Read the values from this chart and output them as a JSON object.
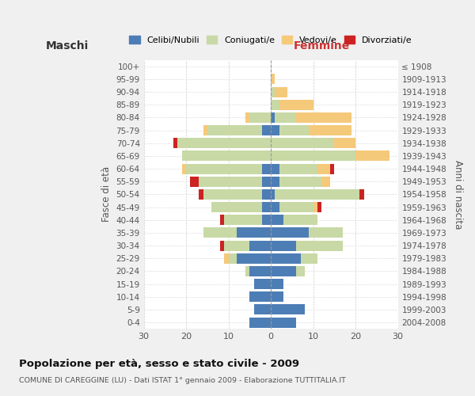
{
  "age_groups": [
    "0-4",
    "5-9",
    "10-14",
    "15-19",
    "20-24",
    "25-29",
    "30-34",
    "35-39",
    "40-44",
    "45-49",
    "50-54",
    "55-59",
    "60-64",
    "65-69",
    "70-74",
    "75-79",
    "80-84",
    "85-89",
    "90-94",
    "95-99",
    "100+"
  ],
  "birth_years": [
    "2004-2008",
    "1999-2003",
    "1994-1998",
    "1989-1993",
    "1984-1988",
    "1979-1983",
    "1974-1978",
    "1969-1973",
    "1964-1968",
    "1959-1963",
    "1954-1958",
    "1949-1953",
    "1944-1948",
    "1939-1943",
    "1934-1938",
    "1929-1933",
    "1924-1928",
    "1919-1923",
    "1914-1918",
    "1909-1913",
    "≤ 1908"
  ],
  "males": {
    "celibi": [
      5,
      4,
      5,
      4,
      5,
      8,
      5,
      8,
      2,
      2,
      2,
      2,
      2,
      0,
      0,
      2,
      0,
      0,
      0,
      0,
      0
    ],
    "coniugati": [
      0,
      0,
      0,
      0,
      1,
      2,
      6,
      8,
      9,
      12,
      14,
      15,
      18,
      21,
      22,
      13,
      5,
      0,
      0,
      0,
      0
    ],
    "vedovi": [
      0,
      0,
      0,
      0,
      0,
      1,
      0,
      0,
      0,
      0,
      0,
      0,
      1,
      0,
      0,
      1,
      1,
      0,
      0,
      0,
      0
    ],
    "divorziati": [
      0,
      0,
      0,
      0,
      0,
      0,
      1,
      0,
      1,
      0,
      1,
      2,
      0,
      0,
      1,
      0,
      0,
      0,
      0,
      0,
      0
    ]
  },
  "females": {
    "nubili": [
      6,
      8,
      3,
      3,
      6,
      7,
      6,
      9,
      3,
      2,
      1,
      2,
      2,
      0,
      0,
      2,
      1,
      0,
      0,
      0,
      0
    ],
    "coniugate": [
      0,
      0,
      0,
      0,
      2,
      4,
      11,
      8,
      8,
      8,
      20,
      10,
      9,
      20,
      15,
      7,
      5,
      2,
      1,
      0,
      0
    ],
    "vedove": [
      0,
      0,
      0,
      0,
      0,
      0,
      0,
      0,
      0,
      1,
      0,
      2,
      3,
      8,
      5,
      10,
      13,
      8,
      3,
      1,
      0
    ],
    "divorziate": [
      0,
      0,
      0,
      0,
      0,
      0,
      0,
      0,
      0,
      1,
      1,
      0,
      1,
      0,
      0,
      0,
      0,
      0,
      0,
      0,
      0
    ]
  },
  "colors": {
    "celibi": "#4d7db5",
    "coniugati": "#c8d9a5",
    "vedovi": "#f5c97a",
    "divorziati": "#cc2222"
  },
  "xlim": 30,
  "title": "Popolazione per età, sesso e stato civile - 2009",
  "subtitle": "COMUNE DI CAREGGINE (LU) - Dati ISTAT 1° gennaio 2009 - Elaborazione TUTTITALIA.IT",
  "ylabel_left": "Fasce di età",
  "ylabel_right": "Anni di nascita",
  "xlabel_left": "Maschi",
  "xlabel_right": "Femmine",
  "bg_color": "#f0f0f0",
  "plot_bg": "#ffffff"
}
